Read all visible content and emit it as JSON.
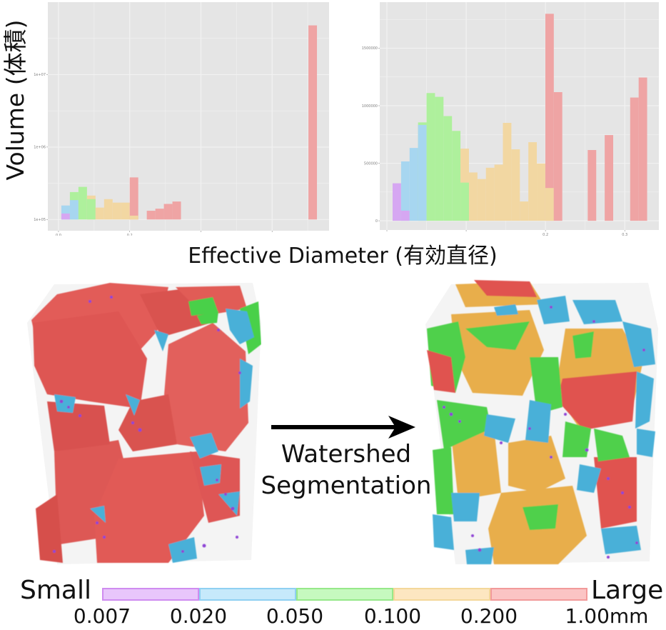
{
  "axes": {
    "ylabel": "Volume (体積)",
    "xlabel": "Effective Diameter (有効直径)"
  },
  "colors": {
    "purple": "#d6a7f2",
    "blue": "#a7d6f0",
    "green": "#aef09c",
    "yellow": "#f2d7a2",
    "red": "#efa4a4",
    "panel": "#e5e5e5",
    "grid": "#f2f2f2"
  },
  "chart_data": [
    {
      "type": "bar",
      "title": "",
      "xlabel": "Effective Diameter (有効直径)",
      "ylabel": "Volume (体積)",
      "yscale": "log",
      "ylim": [
        70000,
        100000000
      ],
      "xlim": [
        -0.03,
        0.76
      ],
      "grid": true,
      "stacked": true,
      "bin_width": 0.024,
      "x_ticks": [
        0.0,
        0.2,
        0.4,
        0.6
      ],
      "x_tick_labels": [
        "0.0",
        "0.2",
        "",
        ""
      ],
      "y_ticks": [
        100000,
        1000000,
        10000000
      ],
      "y_tick_labels": [
        "1e+05",
        "1e+06",
        "1e+07"
      ],
      "bars": [
        {
          "x": 0.008,
          "segments": [
            {
              "color": "purple",
              "value": 121000
            },
            {
              "color": "blue",
              "value": 156000
            }
          ]
        },
        {
          "x": 0.032,
          "segments": [
            {
              "color": "blue",
              "value": 185000
            },
            {
              "color": "green",
              "value": 239000
            }
          ]
        },
        {
          "x": 0.056,
          "segments": [
            {
              "color": "green",
              "value": 282000
            }
          ]
        },
        {
          "x": 0.08,
          "segments": [
            {
              "color": "green",
              "value": 191000
            },
            {
              "color": "yellow",
              "value": 214000
            }
          ]
        },
        {
          "x": 0.104,
          "segments": [
            {
              "color": "yellow",
              "value": 146000
            }
          ]
        },
        {
          "x": 0.128,
          "segments": [
            {
              "color": "yellow",
              "value": 191000
            }
          ]
        },
        {
          "x": 0.152,
          "segments": [
            {
              "color": "yellow",
              "value": 171000
            }
          ]
        },
        {
          "x": 0.176,
          "segments": [
            {
              "color": "yellow",
              "value": 171000
            }
          ]
        },
        {
          "x": 0.2,
          "segments": [
            {
              "color": "yellow",
              "value": 113000
            },
            {
              "color": "red",
              "value": 381000
            }
          ]
        },
        {
          "x": 0.248,
          "segments": [
            {
              "color": "red",
              "value": 132000
            }
          ]
        },
        {
          "x": 0.272,
          "segments": [
            {
              "color": "red",
              "value": 141000
            }
          ]
        },
        {
          "x": 0.296,
          "segments": [
            {
              "color": "red",
              "value": 164000
            }
          ]
        },
        {
          "x": 0.32,
          "segments": [
            {
              "color": "red",
              "value": 177000
            }
          ]
        },
        {
          "x": 0.702,
          "segments": [
            {
              "color": "red",
              "value": 47800000
            }
          ]
        }
      ]
    },
    {
      "type": "bar",
      "title": "",
      "xlabel": "Effective Diameter (有効直径)",
      "ylabel": "Volume (体積)",
      "yscale": "linear",
      "ylim": [
        -80000,
        1900000
      ],
      "xlim": [
        -0.009,
        0.343
      ],
      "grid": true,
      "stacked": true,
      "bin_width": 0.0107,
      "x_ticks": [
        0.0,
        0.1,
        0.2,
        0.3
      ],
      "x_tick_labels": [
        "",
        "",
        "0.2",
        "0.3"
      ],
      "y_ticks": [
        0,
        500000,
        1000000,
        1500000
      ],
      "y_tick_labels": [
        "0",
        "500000",
        "1000000",
        "1500000"
      ],
      "bars": [
        {
          "x": 0.0072,
          "segments": [
            {
              "color": "purple",
              "value": 326000
            }
          ]
        },
        {
          "x": 0.0179,
          "segments": [
            {
              "color": "purple",
              "value": 88000
            },
            {
              "color": "blue",
              "value": 516000
            }
          ]
        },
        {
          "x": 0.0286,
          "segments": [
            {
              "color": "blue",
              "value": 633000
            }
          ]
        },
        {
          "x": 0.0393,
          "segments": [
            {
              "color": "blue",
              "value": 833000
            },
            {
              "color": "green",
              "value": 855000
            }
          ]
        },
        {
          "x": 0.05,
          "segments": [
            {
              "color": "green",
              "value": 1110000
            }
          ]
        },
        {
          "x": 0.0607,
          "segments": [
            {
              "color": "green",
              "value": 1077000
            }
          ]
        },
        {
          "x": 0.0714,
          "segments": [
            {
              "color": "green",
              "value": 910000
            }
          ]
        },
        {
          "x": 0.0821,
          "segments": [
            {
              "color": "green",
              "value": 781000
            }
          ]
        },
        {
          "x": 0.0928,
          "segments": [
            {
              "color": "green",
              "value": 332000
            },
            {
              "color": "yellow",
              "value": 627000
            }
          ]
        },
        {
          "x": 0.1035,
          "segments": [
            {
              "color": "yellow",
              "value": 420000
            }
          ]
        },
        {
          "x": 0.1142,
          "segments": [
            {
              "color": "yellow",
              "value": 363000
            }
          ]
        },
        {
          "x": 0.1249,
          "segments": [
            {
              "color": "yellow",
              "value": 461000
            }
          ]
        },
        {
          "x": 0.1356,
          "segments": [
            {
              "color": "yellow",
              "value": 488000
            }
          ]
        },
        {
          "x": 0.1463,
          "segments": [
            {
              "color": "yellow",
              "value": 851000
            }
          ]
        },
        {
          "x": 0.157,
          "segments": [
            {
              "color": "yellow",
              "value": 621000
            }
          ]
        },
        {
          "x": 0.1677,
          "segments": [
            {
              "color": "yellow",
              "value": 168000
            }
          ]
        },
        {
          "x": 0.1784,
          "segments": [
            {
              "color": "yellow",
              "value": 683000
            }
          ]
        },
        {
          "x": 0.1891,
          "segments": [
            {
              "color": "yellow",
              "value": 498000
            }
          ]
        },
        {
          "x": 0.1998,
          "segments": [
            {
              "color": "yellow",
              "value": 285000
            },
            {
              "color": "red",
              "value": 1799000
            }
          ]
        },
        {
          "x": 0.2105,
          "segments": [
            {
              "color": "red",
              "value": 1118000
            }
          ]
        },
        {
          "x": 0.2533,
          "segments": [
            {
              "color": "red",
              "value": 615000
            }
          ]
        },
        {
          "x": 0.2747,
          "segments": [
            {
              "color": "red",
              "value": 745000
            }
          ]
        },
        {
          "x": 0.3068,
          "segments": [
            {
              "color": "red",
              "value": 1071000
            }
          ]
        },
        {
          "x": 0.3175,
          "segments": [
            {
              "color": "red",
              "value": 1245000
            }
          ]
        }
      ]
    }
  ],
  "segmentation": {
    "label_line1": "Watershed",
    "label_line2": "Segmentation"
  },
  "legend": {
    "small_label": "Small",
    "large_label": "Large",
    "segments": [
      "purple",
      "blue",
      "green",
      "yellow",
      "red"
    ],
    "values": [
      "0.007",
      "0.020",
      "0.050",
      "0.100",
      "0.200",
      "1.00mm"
    ]
  }
}
